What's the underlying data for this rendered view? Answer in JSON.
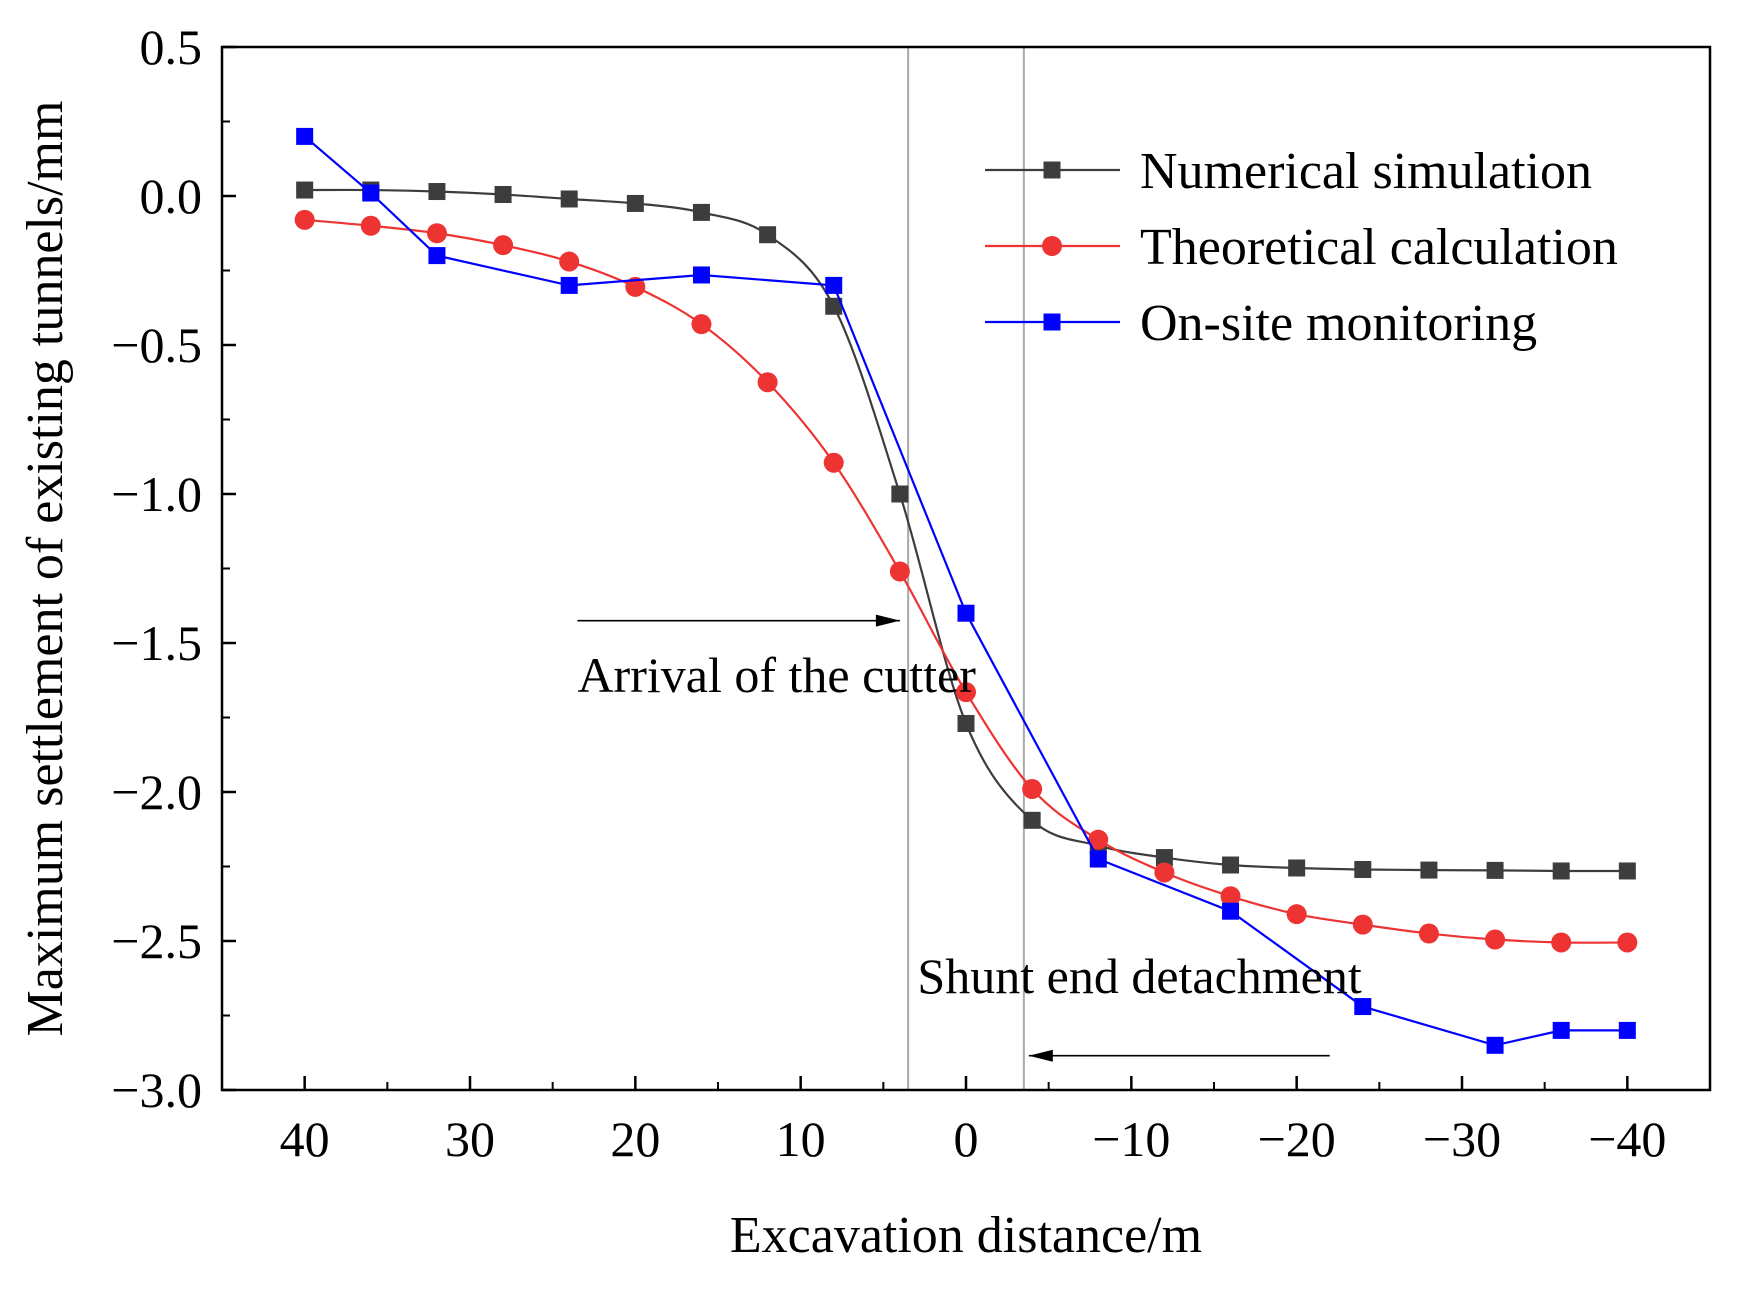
{
  "chart_data": {
    "type": "line",
    "title": "",
    "xlabel": "Excavation distance/m",
    "ylabel": "Maximum settlement of existing tunnels/mm",
    "xlim": [
      45,
      -45
    ],
    "ylim": [
      -3.0,
      0.5
    ],
    "x_ticks": [
      40,
      30,
      20,
      10,
      0,
      -10,
      -20,
      -30,
      -40
    ],
    "x_tick_labels": [
      "40",
      "30",
      "20",
      "10",
      "0",
      "−10",
      "−20",
      "−30",
      "−40"
    ],
    "y_ticks": [
      0.5,
      0.0,
      -0.5,
      -1.0,
      -1.5,
      -2.0,
      -2.5,
      -3.0
    ],
    "y_tick_labels": [
      "0.5",
      "0.0",
      "−0.5",
      "−1.0",
      "−1.5",
      "−2.0",
      "−2.5",
      "−3.0"
    ],
    "grid": false,
    "legend_position": "top-right",
    "series": [
      {
        "name": "Numerical simulation",
        "color": "#3d3d3d",
        "marker": "square",
        "x": [
          40,
          36,
          32,
          28,
          24,
          20,
          16,
          12,
          8,
          4,
          0,
          -4,
          -8,
          -12,
          -16,
          -20,
          -24,
          -28,
          -32,
          -36,
          -40
        ],
        "values": [
          0.02,
          0.02,
          0.015,
          0.005,
          -0.01,
          -0.025,
          -0.055,
          -0.13,
          -0.37,
          -1.0,
          -1.77,
          -2.095,
          -2.18,
          -2.22,
          -2.245,
          -2.255,
          -2.26,
          -2.262,
          -2.263,
          -2.265,
          -2.265
        ]
      },
      {
        "name": "Theoretical calculation",
        "color": "#ee3333",
        "marker": "circle",
        "x": [
          40,
          36,
          32,
          28,
          24,
          20,
          16,
          12,
          8,
          4,
          0,
          -4,
          -8,
          -12,
          -16,
          -20,
          -24,
          -28,
          -32,
          -36,
          -40
        ],
        "values": [
          -0.08,
          -0.1,
          -0.125,
          -0.165,
          -0.22,
          -0.305,
          -0.43,
          -0.625,
          -0.895,
          -1.26,
          -1.665,
          -1.99,
          -2.16,
          -2.27,
          -2.35,
          -2.41,
          -2.445,
          -2.475,
          -2.495,
          -2.505,
          -2.505
        ]
      },
      {
        "name": "On-site monitoring",
        "color": "#0000ff",
        "marker": "square",
        "x": [
          40,
          36,
          32,
          24,
          16,
          8,
          0,
          -8,
          -16,
          -24,
          -32,
          -36,
          -40
        ],
        "values": [
          0.2,
          0.01,
          -0.2,
          -0.3,
          -0.265,
          -0.3,
          -1.4,
          -2.225,
          -2.4,
          -2.72,
          -2.85,
          -2.8,
          -2.8
        ]
      }
    ],
    "reference_lines": [
      {
        "x": 3.5,
        "color": "#aaaaaa"
      },
      {
        "x": -3.5,
        "color": "#aaaaaa"
      }
    ],
    "annotations": [
      {
        "text": "Arrival of the cutter",
        "arrow_from": [
          23.5,
          -1.425
        ],
        "arrow_to": [
          4.0,
          -1.425
        ],
        "label_at": [
          23.5,
          -1.61
        ]
      },
      {
        "text": "Shunt end detachment",
        "arrow_from": [
          -22.0,
          -2.885
        ],
        "arrow_to": [
          -3.8,
          -2.885
        ],
        "label_at": [
          -10.5,
          -2.62
        ]
      }
    ]
  }
}
